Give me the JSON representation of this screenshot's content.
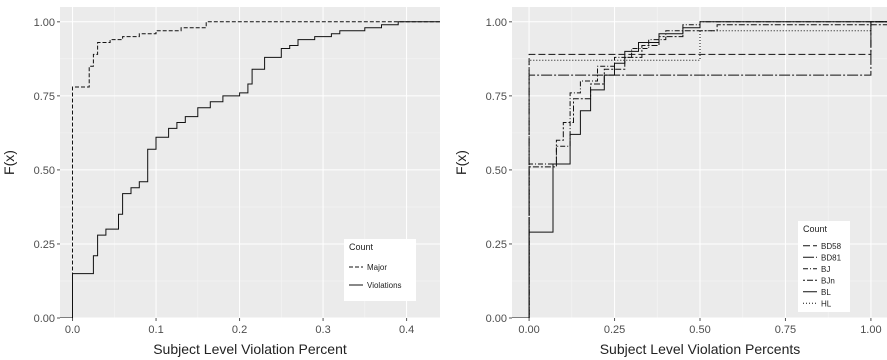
{
  "chart_data": [
    {
      "type": "line",
      "subtype": "step-ecdf",
      "xlabel": "Subject Level Violation Percent",
      "ylabel": "F(x)",
      "xlim": [
        -0.015,
        0.44
      ],
      "ylim": [
        0,
        1.05
      ],
      "x_ticks": [
        0.0,
        0.1,
        0.2,
        0.3,
        0.4
      ],
      "x_tick_labels": [
        "0.0",
        "0.1",
        "0.2",
        "0.3",
        "0.4"
      ],
      "y_ticks": [
        0,
        0.25,
        0.5,
        0.75,
        1.0
      ],
      "y_tick_labels": [
        "0.00",
        "0.25",
        "0.50",
        "0.75",
        "1.00"
      ],
      "grid": true,
      "legend": {
        "title": "Count",
        "position": "bottom-right"
      },
      "series": [
        {
          "name": "Major",
          "dash": "4,2",
          "x": [
            -0.015,
            0.0,
            0.02,
            0.025,
            0.03,
            0.045,
            0.06,
            0.08,
            0.1,
            0.13,
            0.16,
            0.44
          ],
          "y": [
            0.0,
            0.78,
            0.85,
            0.89,
            0.93,
            0.94,
            0.95,
            0.96,
            0.97,
            0.98,
            1.0,
            1.0
          ]
        },
        {
          "name": "Violations",
          "dash": "",
          "x": [
            -0.015,
            0.0,
            0.025,
            0.03,
            0.04,
            0.055,
            0.06,
            0.07,
            0.08,
            0.09,
            0.1,
            0.115,
            0.125,
            0.135,
            0.15,
            0.165,
            0.18,
            0.2,
            0.21,
            0.215,
            0.23,
            0.25,
            0.26,
            0.27,
            0.29,
            0.31,
            0.32,
            0.35,
            0.37,
            0.39,
            0.44
          ],
          "y": [
            0.0,
            0.15,
            0.21,
            0.28,
            0.3,
            0.35,
            0.42,
            0.44,
            0.46,
            0.57,
            0.61,
            0.64,
            0.66,
            0.68,
            0.71,
            0.73,
            0.75,
            0.76,
            0.79,
            0.84,
            0.88,
            0.91,
            0.92,
            0.94,
            0.95,
            0.96,
            0.97,
            0.98,
            0.99,
            1.0,
            1.0
          ]
        }
      ]
    },
    {
      "type": "line",
      "subtype": "step-ecdf",
      "xlabel": "Subject Level Violation Percents",
      "ylabel": "F(x)",
      "xlim": [
        -0.05,
        1.05
      ],
      "ylim": [
        0,
        1.05
      ],
      "x_ticks": [
        0.0,
        0.25,
        0.5,
        0.75,
        1.0
      ],
      "x_tick_labels": [
        "0.00",
        "0.25",
        "0.50",
        "0.75",
        "1.00"
      ],
      "y_ticks": [
        0,
        0.25,
        0.5,
        0.75,
        1.0
      ],
      "y_tick_labels": [
        "0.00",
        "0.25",
        "0.50",
        "0.75",
        "1.00"
      ],
      "grid": true,
      "legend": {
        "title": "Count",
        "position": "bottom-right"
      },
      "series": [
        {
          "name": "BD58",
          "dash": "7,3",
          "x": [
            -0.05,
            0.0,
            1.0,
            1.05
          ],
          "y": [
            0.0,
            0.89,
            1.0,
            1.0
          ]
        },
        {
          "name": "BD81",
          "dash": "11,2,2,2",
          "x": [
            -0.05,
            0.0,
            1.0,
            1.05
          ],
          "y": [
            0.0,
            0.82,
            1.0,
            1.0
          ]
        },
        {
          "name": "BJ",
          "dash": "5,2,1,2",
          "x": [
            -0.05,
            0.0,
            0.08,
            0.12,
            0.15,
            0.2,
            0.25,
            0.3,
            0.35,
            0.4,
            0.45,
            0.5,
            1.05
          ],
          "y": [
            0.0,
            0.52,
            0.58,
            0.76,
            0.8,
            0.85,
            0.88,
            0.91,
            0.94,
            0.97,
            0.99,
            1.0,
            1.0
          ]
        },
        {
          "name": "BJn",
          "dash": "2,2,6,2",
          "x": [
            -0.05,
            0.0,
            0.08,
            0.1,
            0.13,
            0.18,
            0.22,
            0.28,
            0.33,
            0.38,
            0.45,
            0.55,
            1.05
          ],
          "y": [
            0.0,
            0.51,
            0.6,
            0.66,
            0.74,
            0.79,
            0.84,
            0.88,
            0.92,
            0.95,
            0.97,
            0.99,
            1.0
          ]
        },
        {
          "name": "BL",
          "dash": "",
          "x": [
            -0.05,
            0.0,
            0.07,
            0.12,
            0.15,
            0.18,
            0.22,
            0.25,
            0.28,
            0.32,
            0.38,
            0.45,
            0.5,
            1.05
          ],
          "y": [
            0.0,
            0.29,
            0.52,
            0.62,
            0.7,
            0.77,
            0.82,
            0.86,
            0.9,
            0.93,
            0.96,
            0.98,
            1.0,
            1.0
          ]
        },
        {
          "name": "HL",
          "dash": "1,2",
          "x": [
            -0.05,
            0.0,
            0.5,
            1.0,
            1.05
          ],
          "y": [
            0.0,
            0.87,
            0.97,
            1.0,
            1.0
          ]
        }
      ]
    }
  ]
}
